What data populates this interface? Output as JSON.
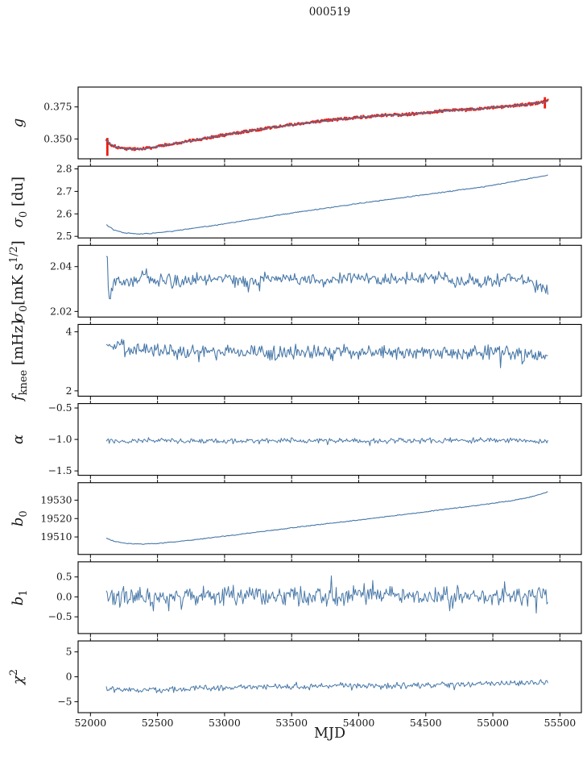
{
  "title": "000519",
  "xlabel": "MJD",
  "colors": {
    "line_blue": "#4878a8",
    "marker_red": "#ed1c10",
    "axis": "#000000",
    "text": "#1a1a1a"
  },
  "chart_data": {
    "type": "line",
    "title": "000519",
    "grid": false,
    "legend": "none",
    "x": {
      "label": "MJD",
      "lim": [
        51908,
        55660
      ],
      "data_range": [
        52118,
        55410
      ],
      "ticks": [
        52000,
        52500,
        53000,
        53500,
        54000,
        54500,
        55000,
        55500
      ],
      "tick_labels": [
        "52000",
        "52500",
        "53000",
        "53500",
        "54000",
        "54500",
        "55000",
        "55500"
      ]
    },
    "panels": [
      {
        "name": "g",
        "ylabel_segments": [
          {
            "t": "g",
            "it": 1
          }
        ],
        "ylim": [
          0.3345,
          0.3905
        ],
        "yticks": [
          0.35,
          0.375
        ],
        "ytick_labels": [
          "0.350",
          "0.375"
        ],
        "anchors": [
          [
            52118,
            0.3492
          ],
          [
            52135,
            0.347
          ],
          [
            52160,
            0.3452
          ],
          [
            52200,
            0.3436
          ],
          [
            52250,
            0.3426
          ],
          [
            52320,
            0.3421
          ],
          [
            52400,
            0.3424
          ],
          [
            52500,
            0.3441
          ],
          [
            52620,
            0.3462
          ],
          [
            52750,
            0.3486
          ],
          [
            52900,
            0.3514
          ],
          [
            53050,
            0.3541
          ],
          [
            53200,
            0.3566
          ],
          [
            53350,
            0.3589
          ],
          [
            53500,
            0.361
          ],
          [
            53650,
            0.363
          ],
          [
            53800,
            0.3648
          ],
          [
            53950,
            0.3663
          ],
          [
            54080,
            0.3676
          ],
          [
            54180,
            0.3684
          ],
          [
            54280,
            0.3687
          ],
          [
            54380,
            0.3693
          ],
          [
            54480,
            0.3703
          ],
          [
            54580,
            0.3714
          ],
          [
            54680,
            0.3722
          ],
          [
            54780,
            0.3727
          ],
          [
            54880,
            0.3734
          ],
          [
            54980,
            0.3744
          ],
          [
            55080,
            0.3754
          ],
          [
            55180,
            0.3762
          ],
          [
            55280,
            0.3773
          ],
          [
            55360,
            0.3785
          ],
          [
            55410,
            0.3795
          ]
        ],
        "series": [
          {
            "name": "gain-samples-red",
            "style": "scatter",
            "color_key": "marker_red",
            "r": 1.2,
            "n": 760,
            "noise": 0.0013,
            "seed": 101,
            "spikes": [
              [
                52126,
                0.3368,
                0.3508
              ],
              [
                55388,
                0.3738,
                0.3826
              ]
            ]
          },
          {
            "name": "gain-smoothed-blue",
            "style": "line",
            "color_key": "line_blue",
            "w": 1.3,
            "n": 420,
            "noise": 0.0004,
            "seed": 102
          }
        ]
      },
      {
        "name": "sigma0-du",
        "ylabel_segments": [
          {
            "t": "σ",
            "it": 1
          },
          {
            "t": "0",
            "sub": 1
          },
          {
            "t": " [du]"
          }
        ],
        "ylim": [
          2.493,
          2.812
        ],
        "yticks": [
          2.5,
          2.6,
          2.7,
          2.8
        ],
        "ytick_labels": [
          "2.5",
          "2.6",
          "2.7",
          "2.8"
        ],
        "anchors": [
          [
            52118,
            2.552
          ],
          [
            52170,
            2.53
          ],
          [
            52250,
            2.516
          ],
          [
            52350,
            2.511
          ],
          [
            52450,
            2.513
          ],
          [
            52570,
            2.52
          ],
          [
            52700,
            2.53
          ],
          [
            52850,
            2.543
          ],
          [
            53000,
            2.556
          ],
          [
            53150,
            2.57
          ],
          [
            53300,
            2.585
          ],
          [
            53450,
            2.599
          ],
          [
            53600,
            2.612
          ],
          [
            53750,
            2.625
          ],
          [
            53900,
            2.638
          ],
          [
            54050,
            2.65
          ],
          [
            54200,
            2.662
          ],
          [
            54350,
            2.674
          ],
          [
            54500,
            2.686
          ],
          [
            54650,
            2.698
          ],
          [
            54800,
            2.71
          ],
          [
            54950,
            2.722
          ],
          [
            55100,
            2.738
          ],
          [
            55250,
            2.755
          ],
          [
            55410,
            2.772
          ]
        ],
        "series": [
          {
            "name": "sigma0-du-line",
            "style": "line",
            "color_key": "line_blue",
            "w": 1.1,
            "n": 430,
            "noise": 0.0025,
            "seed": 201
          }
        ]
      },
      {
        "name": "sigma0-mK",
        "ylabel_segments": [
          {
            "t": "σ",
            "it": 1
          },
          {
            "t": "0",
            "sub": 1
          },
          {
            "t": "[mK s"
          },
          {
            "t": "1/2",
            "sup": 1
          },
          {
            "t": "]"
          }
        ],
        "ylim": [
          2.0175,
          2.0495
        ],
        "yticks": [
          2.02,
          2.04
        ],
        "ytick_labels": [
          "2.02",
          "2.04"
        ],
        "anchors": [
          [
            52118,
            2.0455
          ],
          [
            52126,
            2.042
          ],
          [
            52136,
            2.0268
          ],
          [
            52150,
            2.029
          ],
          [
            52170,
            2.033
          ],
          [
            52220,
            2.0345
          ],
          [
            52300,
            2.033
          ],
          [
            52400,
            2.036
          ],
          [
            52500,
            2.034
          ],
          [
            52650,
            2.033
          ],
          [
            52800,
            2.0345
          ],
          [
            53000,
            2.034
          ],
          [
            53200,
            2.0335
          ],
          [
            53400,
            2.035
          ],
          [
            53600,
            2.034
          ],
          [
            53800,
            2.0342
          ],
          [
            54000,
            2.0352
          ],
          [
            54200,
            2.0338
          ],
          [
            54400,
            2.0345
          ],
          [
            54600,
            2.0352
          ],
          [
            54800,
            2.034
          ],
          [
            55000,
            2.0338
          ],
          [
            55150,
            2.035
          ],
          [
            55250,
            2.0332
          ],
          [
            55330,
            2.031
          ],
          [
            55410,
            2.0285
          ]
        ],
        "series": [
          {
            "name": "sigma0-mK-line",
            "style": "line",
            "color_key": "line_blue",
            "w": 1.1,
            "n": 430,
            "noise": 0.0036,
            "seed": 301,
            "spike_prob": 0.04,
            "spike_mult": 1.7
          }
        ]
      },
      {
        "name": "fknee",
        "ylabel_segments": [
          {
            "t": "f",
            "it": 1
          },
          {
            "t": "knee",
            "sub": 1
          },
          {
            "t": " [mHz]"
          }
        ],
        "ylim": [
          1.82,
          4.25
        ],
        "yticks": [
          2,
          4
        ],
        "ytick_labels": [
          "2",
          "4"
        ],
        "anchors": [
          [
            52118,
            3.55
          ],
          [
            52250,
            3.48
          ],
          [
            52400,
            3.4
          ],
          [
            52600,
            3.34
          ],
          [
            52900,
            3.3
          ],
          [
            53200,
            3.28
          ],
          [
            53600,
            3.32
          ],
          [
            54000,
            3.28
          ],
          [
            54400,
            3.3
          ],
          [
            54800,
            3.28
          ],
          [
            55100,
            3.28
          ],
          [
            55300,
            3.22
          ],
          [
            55410,
            3.05
          ]
        ],
        "series": [
          {
            "name": "fknee-line",
            "style": "line",
            "color_key": "line_blue",
            "w": 1.1,
            "n": 430,
            "noise": 0.3,
            "seed": 401,
            "spike_prob": 0.07,
            "spike_mult": 1.9
          }
        ]
      },
      {
        "name": "alpha",
        "ylabel_segments": [
          {
            "t": "α",
            "it": 1
          }
        ],
        "ylim": [
          -1.57,
          -0.43
        ],
        "yticks": [
          -1.5,
          -1.0,
          -0.5
        ],
        "ytick_labels": [
          "−1.5",
          "−1.0",
          "−0.5"
        ],
        "anchors": [
          [
            52118,
            -1.03
          ],
          [
            52600,
            -1.02
          ],
          [
            53000,
            -1.03
          ],
          [
            53500,
            -1.02
          ],
          [
            54000,
            -1.025
          ],
          [
            54500,
            -1.02
          ],
          [
            55000,
            -1.015
          ],
          [
            55410,
            -1.02
          ]
        ],
        "series": [
          {
            "name": "alpha-line",
            "style": "line",
            "color_key": "line_blue",
            "w": 1.0,
            "n": 440,
            "noise": 0.052,
            "seed": 501,
            "spike_prob": 0.05,
            "spike_mult": 1.6
          }
        ]
      },
      {
        "name": "b0",
        "ylabel_segments": [
          {
            "t": "b",
            "it": 1
          },
          {
            "t": "0",
            "sub": 1
          }
        ],
        "ylim": [
          19500.5,
          19539.5
        ],
        "yticks": [
          19510,
          19520,
          19530
        ],
        "ytick_labels": [
          "19510",
          "19520",
          "19530"
        ],
        "anchors": [
          [
            52118,
            19509.3
          ],
          [
            52180,
            19507.6
          ],
          [
            52280,
            19506.4
          ],
          [
            52400,
            19506.1
          ],
          [
            52520,
            19506.6
          ],
          [
            52650,
            19507.5
          ],
          [
            52800,
            19508.7
          ],
          [
            53000,
            19510.4
          ],
          [
            53200,
            19512.2
          ],
          [
            53400,
            19514.0
          ],
          [
            53600,
            19515.8
          ],
          [
            53800,
            19517.5
          ],
          [
            54000,
            19519.2
          ],
          [
            54200,
            19521.0
          ],
          [
            54400,
            19522.8
          ],
          [
            54600,
            19524.6
          ],
          [
            54800,
            19526.4
          ],
          [
            55000,
            19528.3
          ],
          [
            55150,
            19529.8
          ],
          [
            55300,
            19532.0
          ],
          [
            55410,
            19534.5
          ]
        ],
        "series": [
          {
            "name": "b0-line",
            "style": "line",
            "color_key": "line_blue",
            "w": 1.1,
            "n": 430,
            "noise": 0.25,
            "seed": 601
          }
        ]
      },
      {
        "name": "b1",
        "ylabel_segments": [
          {
            "t": "b",
            "it": 1
          },
          {
            "t": "1",
            "sub": 1
          }
        ],
        "ylim": [
          -0.92,
          0.88
        ],
        "yticks": [
          -0.5,
          0.0,
          0.5
        ],
        "ytick_labels": [
          "−0.5",
          "0.0",
          "0.5"
        ],
        "anchors": [
          [
            52118,
            0.04
          ],
          [
            53000,
            0.02
          ],
          [
            54000,
            0.03
          ],
          [
            55000,
            0.02
          ],
          [
            55410,
            0.0
          ]
        ],
        "series": [
          {
            "name": "b1-line",
            "style": "line",
            "color_key": "line_blue",
            "w": 1.0,
            "n": 460,
            "noise": 0.27,
            "seed": 701,
            "spike_prob": 0.1,
            "spike_mult": 1.9
          }
        ]
      },
      {
        "name": "chi2",
        "ylabel_segments": [
          {
            "t": "χ",
            "it": 1
          },
          {
            "t": "2",
            "sup": 1
          }
        ],
        "ylim": [
          -7.2,
          7.2
        ],
        "yticks": [
          -5,
          0,
          5
        ],
        "ytick_labels": [
          "−5",
          "0",
          "5"
        ],
        "anchors": [
          [
            52118,
            -2.3
          ],
          [
            52250,
            -2.6
          ],
          [
            52450,
            -2.7
          ],
          [
            52700,
            -2.4
          ],
          [
            53000,
            -2.2
          ],
          [
            53400,
            -2.0
          ],
          [
            53800,
            -1.9
          ],
          [
            54200,
            -1.8
          ],
          [
            54600,
            -1.6
          ],
          [
            55000,
            -1.4
          ],
          [
            55250,
            -1.3
          ],
          [
            55410,
            -1.1
          ]
        ],
        "series": [
          {
            "name": "chi2-line",
            "style": "line",
            "color_key": "line_blue",
            "w": 1.0,
            "n": 440,
            "noise": 0.75,
            "seed": 801,
            "spike_prob": 0.05,
            "spike_mult": 1.8
          }
        ]
      }
    ]
  }
}
